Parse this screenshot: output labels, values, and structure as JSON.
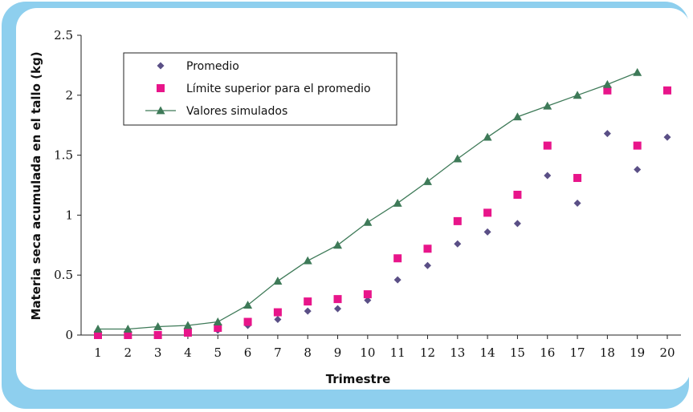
{
  "chart_data": {
    "type": "scatter",
    "xlabel": "Trimestre",
    "ylabel": "Materia seca acumulada en el tallo (kg)",
    "x": [
      1,
      2,
      3,
      4,
      5,
      6,
      7,
      8,
      9,
      10,
      11,
      12,
      13,
      14,
      15,
      16,
      17,
      18,
      19,
      20
    ],
    "xlim": [
      1,
      20
    ],
    "ylim": [
      0,
      2.5
    ],
    "y_ticks": [
      "0",
      "0.5",
      "1",
      "1.5",
      "2",
      "2.5"
    ],
    "x_ticks": [
      "1",
      "2",
      "3",
      "4",
      "5",
      "6",
      "7",
      "8",
      "9",
      "10",
      "11",
      "12",
      "13",
      "14",
      "15",
      "16",
      "17",
      "18",
      "19",
      "20"
    ],
    "legend_position": "top-left",
    "series": [
      {
        "name": "Promedio",
        "marker": "diamond",
        "color": "#5a4f86",
        "x": [
          1,
          2,
          3,
          4,
          5,
          6,
          7,
          8,
          9,
          10,
          11,
          12,
          13,
          14,
          15,
          16,
          17,
          18,
          19,
          20
        ],
        "values": [
          0.0,
          0.0,
          0.0,
          0.02,
          0.04,
          0.08,
          0.13,
          0.2,
          0.22,
          0.29,
          0.46,
          0.58,
          0.76,
          0.86,
          0.93,
          1.33,
          1.1,
          1.68,
          1.38,
          1.65
        ]
      },
      {
        "name": "Límite superior para el promedio",
        "marker": "square",
        "color": "#e8158a",
        "x": [
          1,
          2,
          3,
          4,
          5,
          6,
          7,
          8,
          9,
          10,
          11,
          12,
          13,
          14,
          15,
          16,
          17,
          18,
          19,
          20
        ],
        "values": [
          0.0,
          0.0,
          0.0,
          0.02,
          0.06,
          0.11,
          0.19,
          0.28,
          0.3,
          0.34,
          0.64,
          0.72,
          0.95,
          1.02,
          1.17,
          1.58,
          1.31,
          2.04,
          1.58,
          2.04
        ]
      },
      {
        "name": "Valores simulados",
        "marker": "triangle",
        "line": true,
        "color": "#3e7a58",
        "x": [
          1,
          2,
          3,
          4,
          5,
          6,
          7,
          8,
          9,
          10,
          11,
          12,
          13,
          14,
          15,
          16,
          17,
          18,
          19
        ],
        "values": [
          0.05,
          0.05,
          0.07,
          0.08,
          0.11,
          0.25,
          0.45,
          0.62,
          0.75,
          0.94,
          1.1,
          1.28,
          1.47,
          1.65,
          1.82,
          1.91,
          2.0,
          2.09,
          2.19
        ]
      }
    ]
  }
}
